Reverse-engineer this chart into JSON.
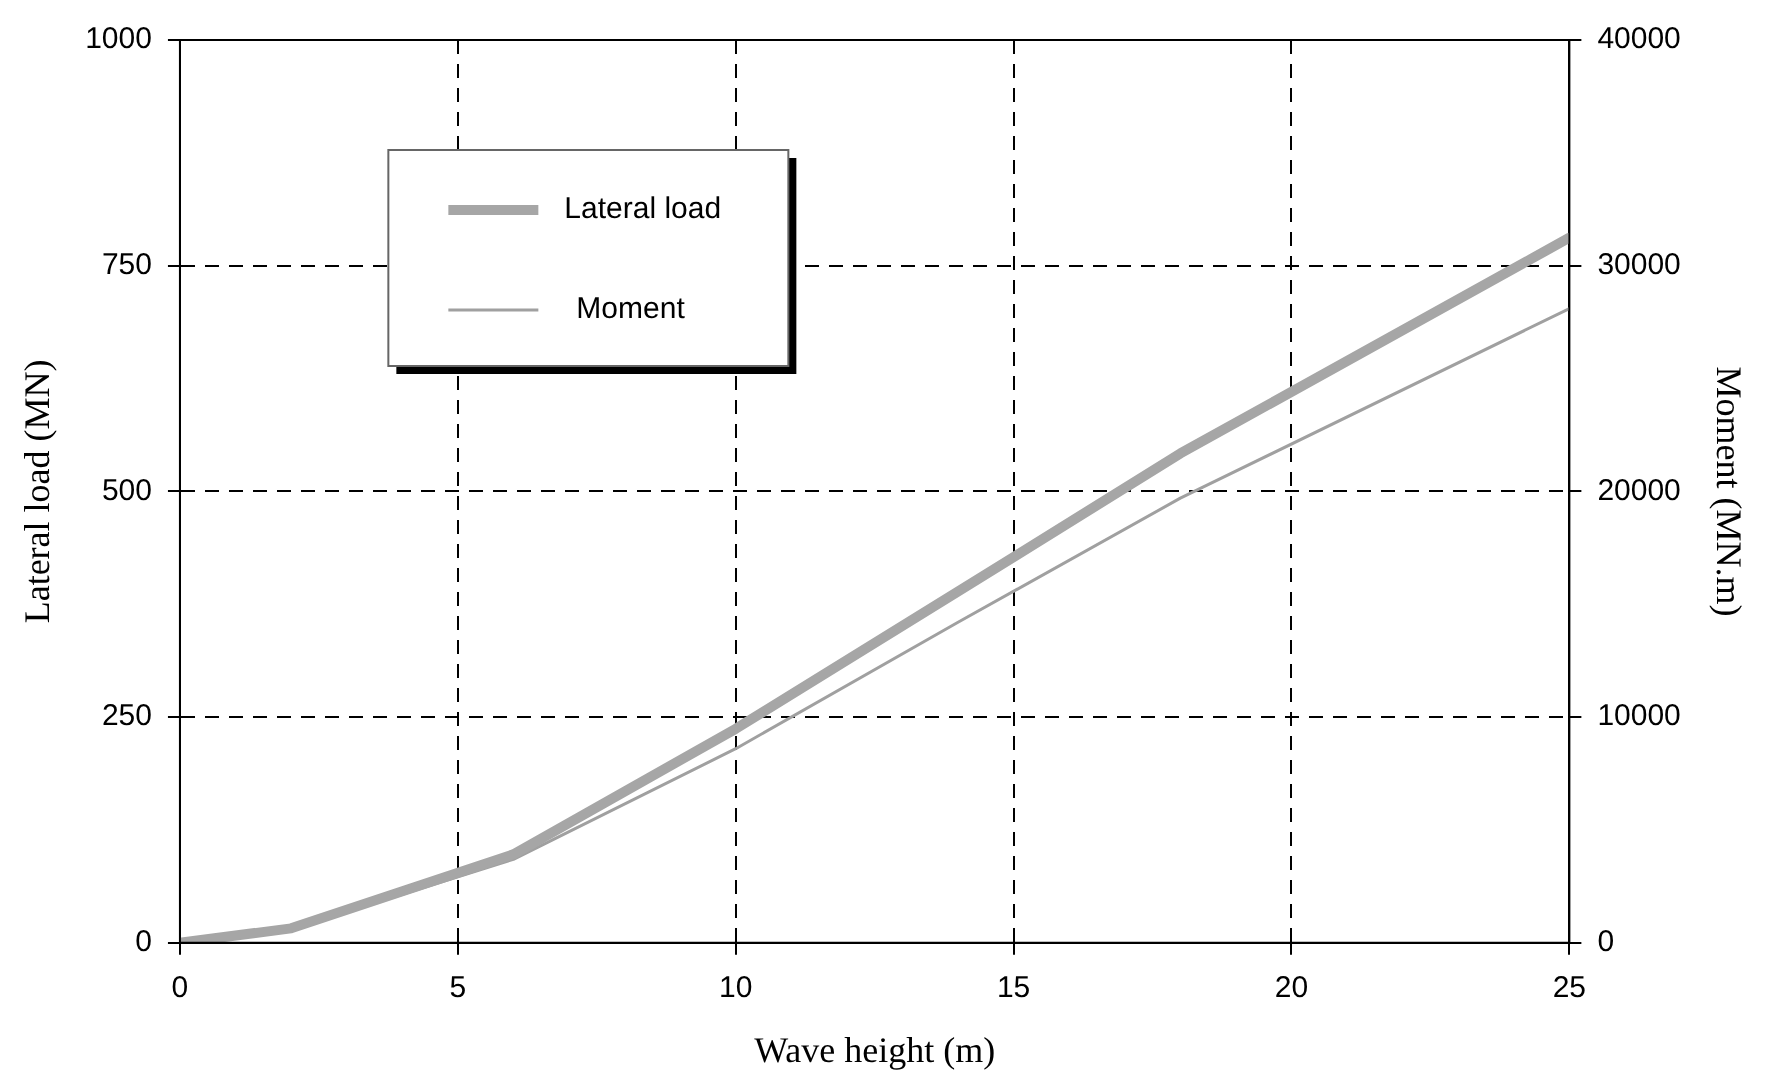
{
  "chart_data": {
    "type": "line",
    "xlabel": "Wave height (m)",
    "ylabel": "Lateral load (MN)",
    "y2label": "Moment (MN.m)",
    "x": [
      0,
      2,
      6,
      10,
      14,
      18,
      25
    ],
    "series": [
      {
        "name": "Lateral load",
        "color": "#a6a6a6",
        "values": [
          0,
          16,
          98,
          237,
          389,
          542,
          781
        ]
      },
      {
        "name": "Moment",
        "color": "#a0a0a0",
        "axis": "y2",
        "values": [
          0,
          600,
          3700,
          8600,
          14200,
          19700,
          28100
        ]
      }
    ],
    "xlim": [
      0,
      25
    ],
    "xticks": [
      0,
      5,
      10,
      15,
      20,
      25
    ],
    "ylim": [
      0,
      1000
    ],
    "yticks": [
      0,
      250,
      500,
      750,
      1000
    ],
    "y2lim": [
      0,
      40000
    ],
    "y2ticks": [
      0,
      10000,
      20000,
      30000,
      40000
    ],
    "grid": true,
    "legend": "top left",
    "marker": "none",
    "line_style": "solid"
  }
}
